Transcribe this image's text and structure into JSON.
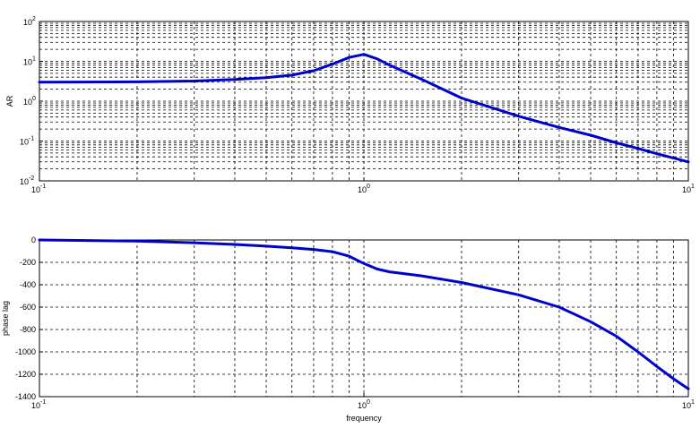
{
  "chart_data": [
    {
      "type": "line",
      "title": "",
      "xlabel": "",
      "ylabel": "AR",
      "xscale": "log",
      "yscale": "log",
      "xlim": [
        0.1,
        10
      ],
      "ylim": [
        0.01,
        100
      ],
      "grid": true,
      "color": "#0000cc",
      "x_tick_labels": [
        {
          "base": "10",
          "exp": "-1"
        },
        {
          "base": "10",
          "exp": "0"
        },
        {
          "base": "10",
          "exp": "1"
        }
      ],
      "y_tick_labels": [
        {
          "base": "10",
          "exp": "-2"
        },
        {
          "base": "10",
          "exp": "-1"
        },
        {
          "base": "10",
          "exp": "0"
        },
        {
          "base": "10",
          "exp": "1"
        },
        {
          "base": "10",
          "exp": "2"
        }
      ],
      "series": [
        {
          "x": [
            0.1,
            0.2,
            0.3,
            0.4,
            0.5,
            0.6,
            0.7,
            0.8,
            0.9,
            1.0,
            1.1,
            1.2,
            1.5,
            2,
            3,
            4,
            5,
            6,
            7,
            8,
            10
          ],
          "y": [
            3.0,
            3.05,
            3.2,
            3.5,
            3.9,
            4.5,
            5.8,
            8.5,
            12.5,
            15.0,
            11.5,
            8.0,
            3.6,
            1.2,
            0.42,
            0.22,
            0.14,
            0.09,
            0.065,
            0.048,
            0.03
          ]
        }
      ]
    },
    {
      "type": "line",
      "title": "",
      "xlabel": "frequency",
      "ylabel": "phase lag",
      "xscale": "log",
      "xlim": [
        0.1,
        10
      ],
      "ylim": [
        -1400,
        0
      ],
      "grid": true,
      "color": "#0000cc",
      "x_tick_labels": [
        {
          "base": "10",
          "exp": "-1"
        },
        {
          "base": "10",
          "exp": "0"
        },
        {
          "base": "10",
          "exp": "1"
        }
      ],
      "y_ticks": [
        "0",
        "-200",
        "-400",
        "-600",
        "-800",
        "-1000",
        "-1200",
        "-1400"
      ],
      "series": [
        {
          "x": [
            0.1,
            0.2,
            0.3,
            0.4,
            0.5,
            0.6,
            0.7,
            0.8,
            0.9,
            1.0,
            1.1,
            1.2,
            1.5,
            2,
            3,
            4,
            5,
            6,
            7,
            8,
            9,
            10
          ],
          "y": [
            0,
            -10,
            -25,
            -40,
            -55,
            -70,
            -85,
            -105,
            -145,
            -210,
            -260,
            -285,
            -320,
            -380,
            -490,
            -600,
            -730,
            -860,
            -1000,
            -1130,
            -1240,
            -1330
          ]
        }
      ]
    }
  ]
}
